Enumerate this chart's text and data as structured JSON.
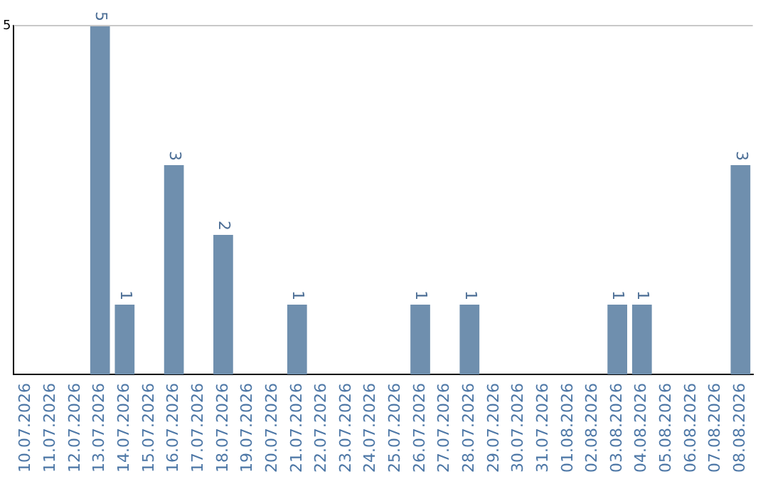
{
  "chart_data": {
    "type": "bar",
    "categories": [
      "10.07.2026",
      "11.07.2026",
      "12.07.2026",
      "13.07.2026",
      "14.07.2026",
      "15.07.2026",
      "16.07.2026",
      "17.07.2026",
      "18.07.2026",
      "19.07.2026",
      "20.07.2026",
      "21.07.2026",
      "22.07.2026",
      "23.07.2026",
      "24.07.2026",
      "25.07.2026",
      "26.07.2026",
      "27.07.2026",
      "28.07.2026",
      "29.07.2026",
      "30.07.2026",
      "31.07.2026",
      "01.08.2026",
      "02.08.2026",
      "03.08.2026",
      "04.08.2026",
      "05.08.2026",
      "06.08.2026",
      "07.08.2026",
      "08.08.2026"
    ],
    "values": [
      0,
      0,
      0,
      5,
      1,
      0,
      3,
      0,
      2,
      0,
      0,
      1,
      0,
      0,
      0,
      0,
      1,
      0,
      1,
      0,
      0,
      0,
      0,
      0,
      1,
      1,
      0,
      0,
      0,
      3
    ],
    "color": "#6f8fae",
    "value_labels": [
      null,
      null,
      null,
      "5",
      "1",
      null,
      "3",
      null,
      "2",
      null,
      null,
      "1",
      null,
      null,
      null,
      null,
      "1",
      null,
      "1",
      null,
      null,
      null,
      null,
      null,
      "1",
      "1",
      null,
      null,
      null,
      "3"
    ],
    "ylim": [
      0,
      5
    ],
    "yticks": [
      5
    ],
    "ref_lines": [
      {
        "axis": "y",
        "value": 5,
        "color": "#c8c8c8"
      }
    ],
    "legend": false
  }
}
